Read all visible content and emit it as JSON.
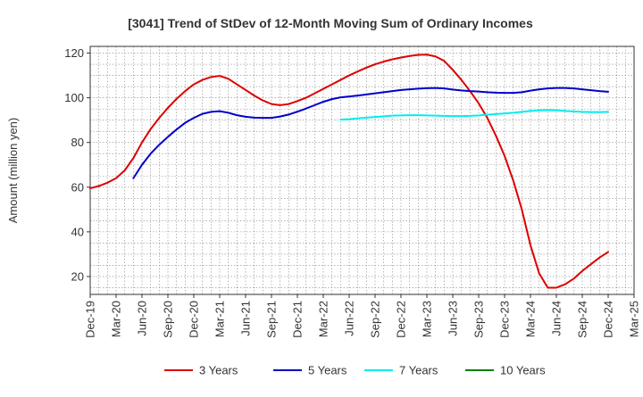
{
  "chart_data": {
    "type": "line",
    "title": "[3041]  Trend of StDev of 12-Month Moving Sum of Ordinary Incomes",
    "ylabel": "Amount (million yen)",
    "xlabel": "",
    "ylim": [
      12,
      123
    ],
    "yticks": [
      20,
      40,
      60,
      80,
      100,
      120
    ],
    "xticks": [
      "Dec-19",
      "Mar-20",
      "Jun-20",
      "Sep-20",
      "Dec-20",
      "Mar-21",
      "Jun-21",
      "Sep-21",
      "Dec-21",
      "Mar-22",
      "Jun-22",
      "Sep-22",
      "Dec-22",
      "Mar-23",
      "Jun-23",
      "Sep-23",
      "Dec-23",
      "Mar-24",
      "Jun-24",
      "Sep-24",
      "Dec-24",
      "Mar-25"
    ],
    "grid": true,
    "legend_position": "bottom",
    "series": [
      {
        "name": "3 Years",
        "color": "#dd0000",
        "points": [
          [
            "Dec-19",
            59.5
          ],
          [
            "Jan-20",
            60.5
          ],
          [
            "Feb-20",
            62.0
          ],
          [
            "Mar-20",
            64.0
          ],
          [
            "Apr-20",
            67.5
          ],
          [
            "May-20",
            73.0
          ],
          [
            "Jun-20",
            80.0
          ],
          [
            "Jul-20",
            86.0
          ],
          [
            "Aug-20",
            91.0
          ],
          [
            "Sep-20",
            95.5
          ],
          [
            "Oct-20",
            99.5
          ],
          [
            "Nov-20",
            103.0
          ],
          [
            "Dec-20",
            106.0
          ],
          [
            "Jan-21",
            108.0
          ],
          [
            "Feb-21",
            109.3
          ],
          [
            "Mar-21",
            109.8
          ],
          [
            "Apr-21",
            108.5
          ],
          [
            "May-21",
            106.0
          ],
          [
            "Jun-21",
            103.5
          ],
          [
            "Jul-21",
            101.0
          ],
          [
            "Aug-21",
            98.8
          ],
          [
            "Sep-21",
            97.2
          ],
          [
            "Oct-21",
            96.7
          ],
          [
            "Nov-21",
            97.2
          ],
          [
            "Dec-21",
            98.5
          ],
          [
            "Jan-22",
            100.0
          ],
          [
            "Feb-22",
            102.0
          ],
          [
            "Mar-22",
            104.0
          ],
          [
            "Apr-22",
            106.0
          ],
          [
            "May-22",
            108.0
          ],
          [
            "Jun-22",
            110.0
          ],
          [
            "Jul-22",
            111.8
          ],
          [
            "Aug-22",
            113.5
          ],
          [
            "Sep-22",
            115.0
          ],
          [
            "Oct-22",
            116.2
          ],
          [
            "Nov-22",
            117.2
          ],
          [
            "Dec-22",
            118.0
          ],
          [
            "Jan-23",
            118.7
          ],
          [
            "Feb-23",
            119.2
          ],
          [
            "Mar-23",
            119.3
          ],
          [
            "Apr-23",
            118.5
          ],
          [
            "May-23",
            116.5
          ],
          [
            "Jun-23",
            112.5
          ],
          [
            "Jul-23",
            108.0
          ],
          [
            "Aug-23",
            103.0
          ],
          [
            "Sep-23",
            97.5
          ],
          [
            "Oct-23",
            91.0
          ],
          [
            "Nov-23",
            83.0
          ],
          [
            "Dec-23",
            74.0
          ],
          [
            "Jan-24",
            63.0
          ],
          [
            "Feb-24",
            50.0
          ],
          [
            "Mar-24",
            34.0
          ],
          [
            "Apr-24",
            21.5
          ],
          [
            "May-24",
            15.0
          ],
          [
            "Jun-24",
            15.0
          ],
          [
            "Jul-24",
            16.5
          ],
          [
            "Aug-24",
            19.0
          ],
          [
            "Sep-24",
            22.5
          ],
          [
            "Oct-24",
            25.5
          ],
          [
            "Nov-24",
            28.5
          ],
          [
            "Dec-24",
            31.0
          ]
        ]
      },
      {
        "name": "5 Years",
        "color": "#0000cc",
        "points": [
          [
            "May-20",
            64.0
          ],
          [
            "Jun-20",
            70.0
          ],
          [
            "Jul-20",
            75.0
          ],
          [
            "Aug-20",
            79.0
          ],
          [
            "Sep-20",
            82.5
          ],
          [
            "Oct-20",
            85.8
          ],
          [
            "Nov-20",
            88.8
          ],
          [
            "Dec-20",
            91.0
          ],
          [
            "Jan-21",
            92.8
          ],
          [
            "Feb-21",
            93.7
          ],
          [
            "Mar-21",
            94.0
          ],
          [
            "Apr-21",
            93.3
          ],
          [
            "May-21",
            92.2
          ],
          [
            "Jun-21",
            91.5
          ],
          [
            "Jul-21",
            91.1
          ],
          [
            "Aug-21",
            91.0
          ],
          [
            "Sep-21",
            91.0
          ],
          [
            "Oct-21",
            91.6
          ],
          [
            "Nov-21",
            92.5
          ],
          [
            "Dec-21",
            93.8
          ],
          [
            "Jan-22",
            95.2
          ],
          [
            "Feb-22",
            96.7
          ],
          [
            "Mar-22",
            98.2
          ],
          [
            "Apr-22",
            99.4
          ],
          [
            "May-22",
            100.2
          ],
          [
            "Jun-22",
            100.6
          ],
          [
            "Jul-22",
            101.0
          ],
          [
            "Aug-22",
            101.5
          ],
          [
            "Sep-22",
            102.0
          ],
          [
            "Oct-22",
            102.5
          ],
          [
            "Nov-22",
            103.0
          ],
          [
            "Dec-22",
            103.5
          ],
          [
            "Jan-23",
            103.8
          ],
          [
            "Feb-23",
            104.1
          ],
          [
            "Mar-23",
            104.3
          ],
          [
            "Apr-23",
            104.4
          ],
          [
            "May-23",
            104.2
          ],
          [
            "Jun-23",
            103.7
          ],
          [
            "Jul-23",
            103.3
          ],
          [
            "Aug-23",
            103.0
          ],
          [
            "Sep-23",
            102.8
          ],
          [
            "Oct-23",
            102.5
          ],
          [
            "Nov-23",
            102.3
          ],
          [
            "Dec-23",
            102.2
          ],
          [
            "Jan-24",
            102.2
          ],
          [
            "Feb-24",
            102.5
          ],
          [
            "Mar-24",
            103.2
          ],
          [
            "Apr-24",
            103.8
          ],
          [
            "May-24",
            104.2
          ],
          [
            "Jun-24",
            104.4
          ],
          [
            "Jul-24",
            104.4
          ],
          [
            "Aug-24",
            104.2
          ],
          [
            "Sep-24",
            103.8
          ],
          [
            "Oct-24",
            103.4
          ],
          [
            "Nov-24",
            103.0
          ],
          [
            "Dec-24",
            102.7
          ]
        ]
      },
      {
        "name": "7 Years",
        "color": "#00eeee",
        "points": [
          [
            "May-22",
            90.2
          ],
          [
            "Jun-22",
            90.4
          ],
          [
            "Jul-22",
            90.8
          ],
          [
            "Aug-22",
            91.1
          ],
          [
            "Sep-22",
            91.4
          ],
          [
            "Oct-22",
            91.7
          ],
          [
            "Nov-22",
            92.0
          ],
          [
            "Dec-22",
            92.1
          ],
          [
            "Jan-23",
            92.2
          ],
          [
            "Feb-23",
            92.2
          ],
          [
            "Mar-23",
            92.1
          ],
          [
            "Apr-23",
            92.0
          ],
          [
            "May-23",
            91.9
          ],
          [
            "Jun-23",
            91.8
          ],
          [
            "Jul-23",
            91.8
          ],
          [
            "Aug-23",
            91.9
          ],
          [
            "Sep-23",
            92.1
          ],
          [
            "Oct-23",
            92.4
          ],
          [
            "Nov-23",
            92.7
          ],
          [
            "Dec-23",
            93.0
          ],
          [
            "Jan-24",
            93.3
          ],
          [
            "Feb-24",
            93.7
          ],
          [
            "Mar-24",
            94.1
          ],
          [
            "Apr-24",
            94.4
          ],
          [
            "May-24",
            94.5
          ],
          [
            "Jun-24",
            94.4
          ],
          [
            "Jul-24",
            94.1
          ],
          [
            "Aug-24",
            93.9
          ],
          [
            "Sep-24",
            93.7
          ],
          [
            "Oct-24",
            93.6
          ],
          [
            "Nov-24",
            93.6
          ],
          [
            "Dec-24",
            93.7
          ]
        ]
      },
      {
        "name": "10 Years",
        "color": "#008000",
        "points": []
      }
    ]
  }
}
